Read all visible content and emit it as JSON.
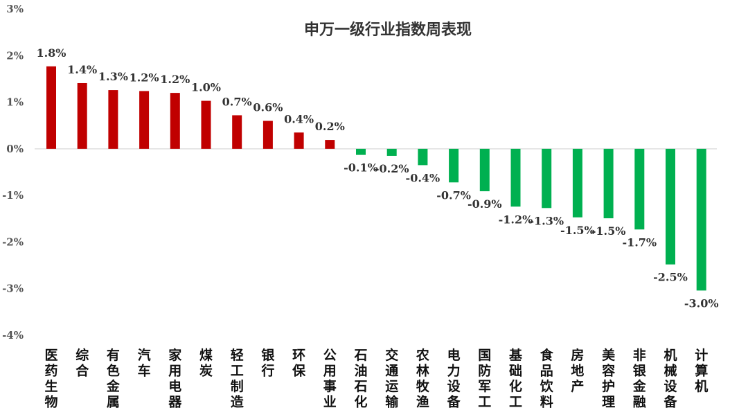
{
  "chart_data": {
    "type": "bar",
    "title": "申万一级行业指数周表现",
    "xlabel": "",
    "ylabel": "",
    "ylim": [
      -4,
      3
    ],
    "yticks": [
      3,
      2,
      1,
      0,
      -1,
      -2,
      -3,
      -4
    ],
    "ytick_labels": [
      "3%",
      "2%",
      "1%",
      "0%",
      "-1%",
      "-2%",
      "-3%",
      "-4%"
    ],
    "categories": [
      "医药生物",
      "综合",
      "有色金属",
      "汽车",
      "家用电器",
      "煤炭",
      "轻工制造",
      "银行",
      "环保",
      "公用事业",
      "石油石化",
      "交通运输",
      "农林牧渔",
      "电力设备",
      "国防军工",
      "基础化工",
      "食品饮料",
      "房地产",
      "美容护理",
      "非银金融",
      "机械设备",
      "计算机"
    ],
    "values": [
      1.77,
      1.41,
      1.26,
      1.24,
      1.2,
      1.03,
      0.72,
      0.6,
      0.35,
      0.19,
      -0.13,
      -0.15,
      -0.35,
      -0.72,
      -0.91,
      -1.24,
      -1.27,
      -1.47,
      -1.49,
      -1.73,
      -2.48,
      -3.04
    ],
    "data_labels": [
      "1.8%",
      "1.4%",
      "1.3%",
      "1.2%",
      "1.2%",
      "1.0%",
      "0.7%",
      "0.6%",
      "0.4%",
      "0.2%",
      "-0.1%",
      "-0.2%",
      "-0.4%",
      "-0.7%",
      "-0.9%",
      "-1.2%",
      "-1.3%",
      "-1.5%",
      "-1.5%",
      "-1.7%",
      "-2.5%",
      "-3.0%"
    ],
    "colors": {
      "positive": "#c00000",
      "negative": "#00b050",
      "axis": "#d9d9d9"
    },
    "grid": false,
    "legend": "none"
  }
}
